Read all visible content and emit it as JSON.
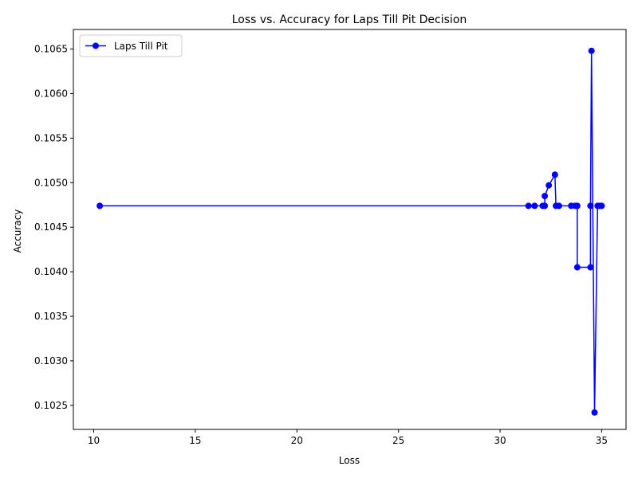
{
  "chart_data": {
    "type": "line",
    "title": "Loss vs. Accuracy for Laps Till Pit Decision",
    "xlabel": "Loss",
    "ylabel": "Accuracy",
    "xlim": [
      9.0,
      36.2
    ],
    "ylim": [
      0.10223,
      0.10672
    ],
    "xticks": [
      10,
      15,
      20,
      25,
      30,
      35
    ],
    "xtick_labels": [
      "10",
      "15",
      "20",
      "25",
      "30",
      "35"
    ],
    "yticks": [
      0.1025,
      0.103,
      0.1035,
      0.104,
      0.1045,
      0.105,
      0.1055,
      0.106,
      0.1065
    ],
    "ytick_labels": [
      "0.1025",
      "0.1030",
      "0.1035",
      "0.1040",
      "0.1045",
      "0.1050",
      "0.1055",
      "0.1060",
      "0.1065"
    ],
    "grid": false,
    "legend_position": "upper-left",
    "series": [
      {
        "name": "Laps Till Pit",
        "color": "#0000ff",
        "marker": "circle",
        "x": [
          10.3,
          31.4,
          31.7,
          32.1,
          32.2,
          32.2,
          32.4,
          32.7,
          32.75,
          32.9,
          33.5,
          33.7,
          33.8,
          33.8,
          34.45,
          34.45,
          34.5,
          34.65,
          34.8,
          34.9,
          35.0
        ],
        "y": [
          0.10474,
          0.10474,
          0.10474,
          0.10474,
          0.10474,
          0.10485,
          0.10497,
          0.10509,
          0.10474,
          0.10474,
          0.10474,
          0.10474,
          0.10474,
          0.10405,
          0.10405,
          0.10474,
          0.10648,
          0.10242,
          0.10474,
          0.10474,
          0.10474
        ]
      }
    ]
  }
}
